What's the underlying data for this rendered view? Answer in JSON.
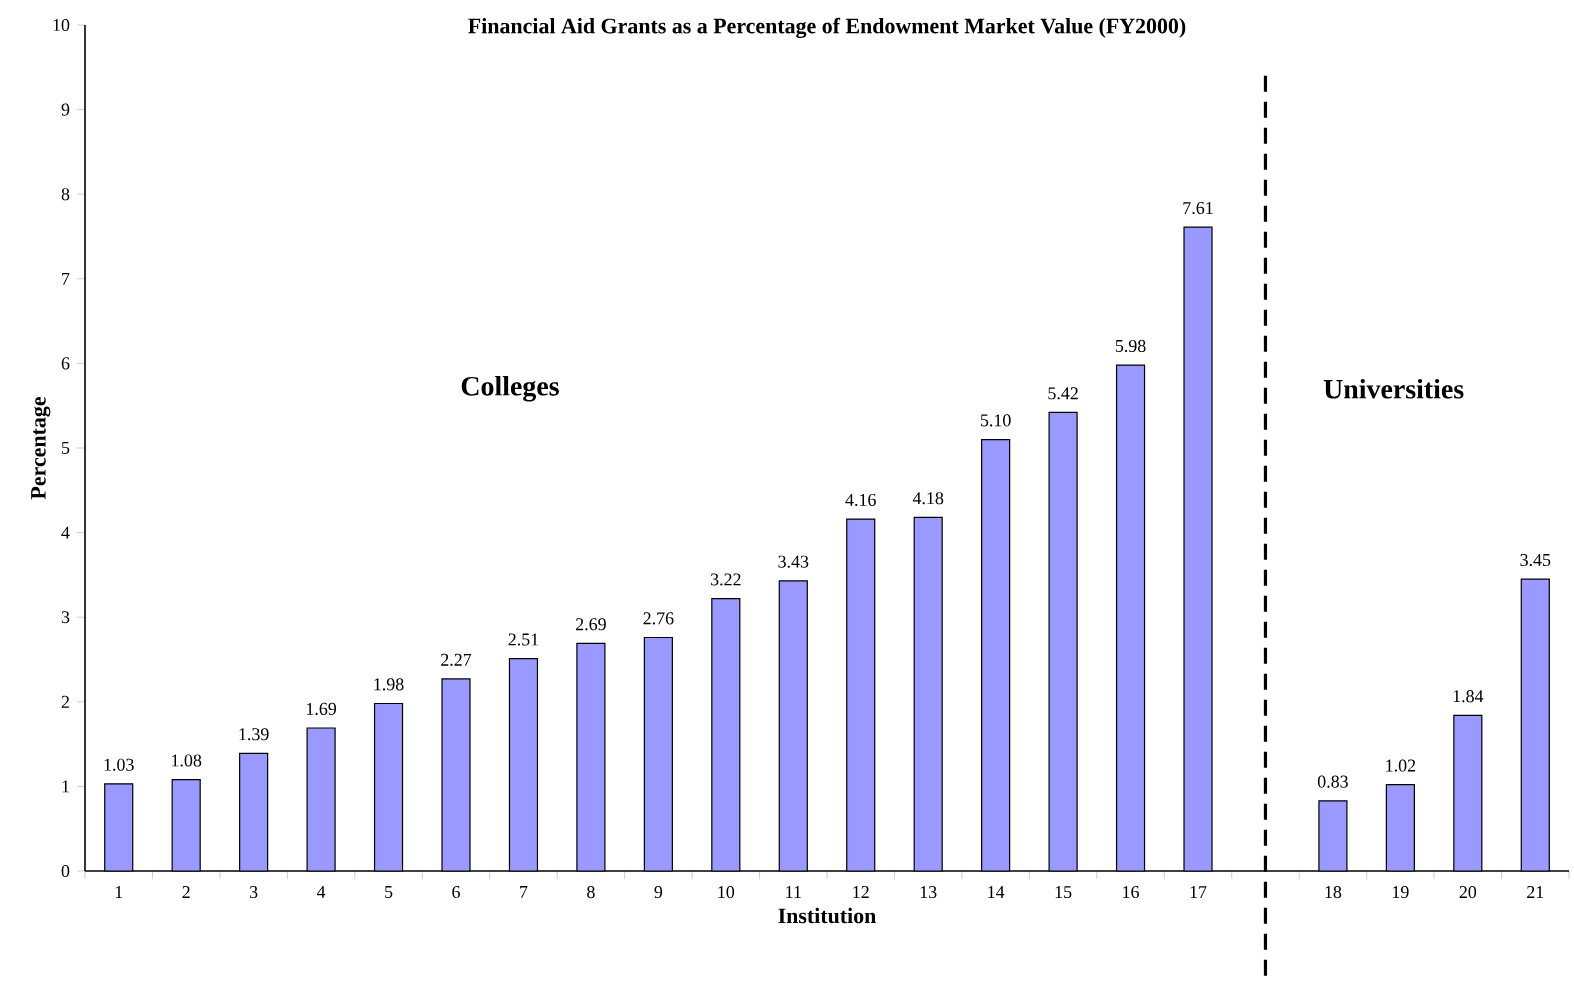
{
  "chart_data": {
    "type": "bar",
    "title": "Financial Aid Grants as a Percentage of Endowment Market Value (FY2000)",
    "xlabel": "Institution",
    "ylabel": "Percentage",
    "categories": [
      "1",
      "2",
      "3",
      "4",
      "5",
      "6",
      "7",
      "8",
      "9",
      "10",
      "11",
      "12",
      "13",
      "14",
      "15",
      "16",
      "17",
      null,
      "18",
      "19",
      "20",
      "21"
    ],
    "values": [
      1.03,
      1.08,
      1.39,
      1.69,
      1.98,
      2.27,
      2.51,
      2.69,
      2.76,
      3.22,
      3.43,
      4.16,
      4.18,
      5.1,
      5.42,
      5.98,
      7.61,
      null,
      0.83,
      1.02,
      1.84,
      3.45
    ],
    "value_labels": [
      "1.03",
      "1.08",
      "1.39",
      "1.69",
      "1.98",
      "2.27",
      "2.51",
      "2.69",
      "2.76",
      "3.22",
      "3.43",
      "4.16",
      "4.18",
      "5.10",
      "5.42",
      "5.98",
      "7.61",
      null,
      "0.83",
      "1.02",
      "1.84",
      "3.45"
    ],
    "color": "#9999ff",
    "ylim": [
      0,
      10
    ],
    "yticks": [
      0,
      1,
      2,
      3,
      4,
      5,
      6,
      7,
      8,
      9,
      10
    ],
    "annotations": [
      "Colleges",
      "Universities"
    ]
  }
}
